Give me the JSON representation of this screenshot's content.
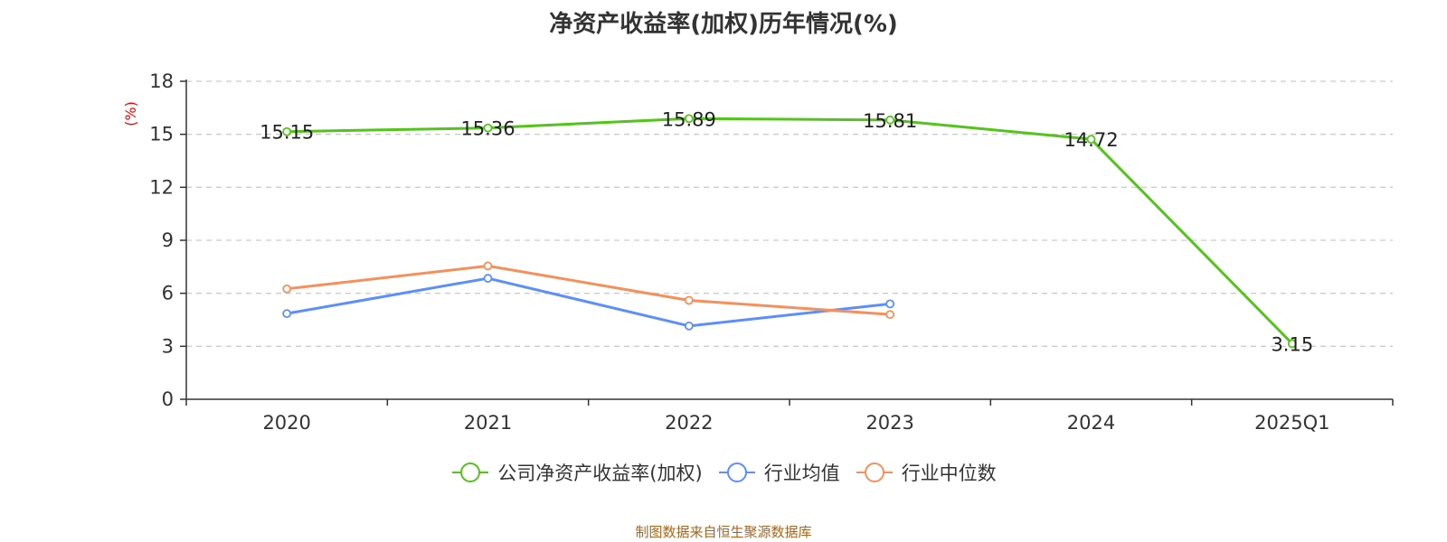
{
  "chart_data": {
    "type": "line",
    "title": "净资产收益率(加权)历年情况(%)",
    "ylabel": "(%)",
    "categories": [
      "2020",
      "2021",
      "2022",
      "2023",
      "2024",
      "2025Q1"
    ],
    "ylim": [
      0,
      18
    ],
    "yticks": [
      0,
      3,
      6,
      9,
      12,
      15,
      18
    ],
    "grid": "horizontal dashed",
    "legend_position": "bottom",
    "series": [
      {
        "name": "公司净资产收益率(加权)",
        "color": "#52c41a",
        "show_labels": true,
        "values": [
          15.15,
          15.36,
          15.89,
          15.81,
          14.72,
          3.15
        ],
        "labels": [
          "15.15",
          "15.36",
          "15.89",
          "15.81",
          "14.72",
          "3.15"
        ]
      },
      {
        "name": "行业均值",
        "color": "#5b8ff9",
        "show_labels": false,
        "values": [
          4.85,
          6.85,
          4.15,
          5.4,
          null,
          null
        ]
      },
      {
        "name": "行业中位数",
        "color": "#f6905a",
        "show_labels": false,
        "values": [
          6.25,
          7.55,
          5.6,
          4.8,
          null,
          null
        ]
      }
    ]
  },
  "source": "制图数据来自恒生聚源数据库"
}
